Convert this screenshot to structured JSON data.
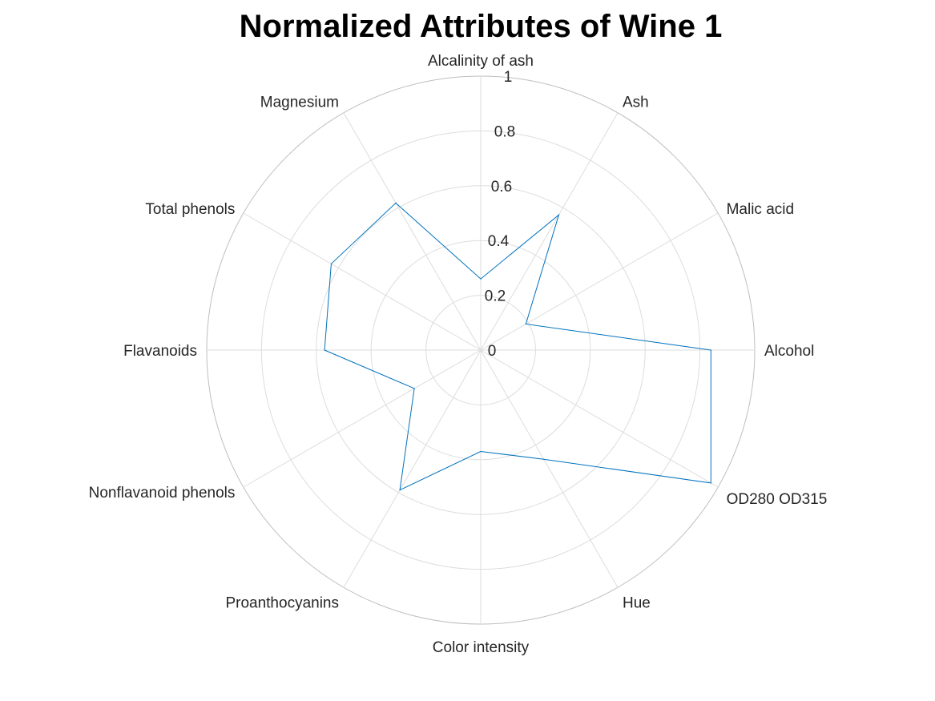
{
  "chart_data": {
    "type": "radar",
    "title": "Normalized Attributes of Wine 1",
    "categories": [
      "Alcohol",
      "Malic acid",
      "Ash",
      "Alcalinity of ash",
      "Magnesium",
      "Total phenols",
      "Flavanoids",
      "Nonflavanoid phenols",
      "Proanthocyanins",
      "Color intensity",
      "Hue",
      "OD280 OD315"
    ],
    "series": [
      {
        "values": [
          0.84,
          0.19,
          0.57,
          0.26,
          0.62,
          0.63,
          0.57,
          0.28,
          0.59,
          0.37,
          0.46,
          0.97
        ]
      }
    ],
    "radial_ticks": [
      0,
      0.2,
      0.4,
      0.6,
      0.8,
      1
    ],
    "radial_tick_labels": [
      "0",
      "0.2",
      "0.4",
      "0.6",
      "0.8",
      "1"
    ],
    "rlim": [
      0,
      1
    ],
    "grid": true,
    "colors": {
      "series": "#0072BD",
      "grid": "#dddddd",
      "outer": "#bfbfbf",
      "text": "#262626"
    }
  }
}
